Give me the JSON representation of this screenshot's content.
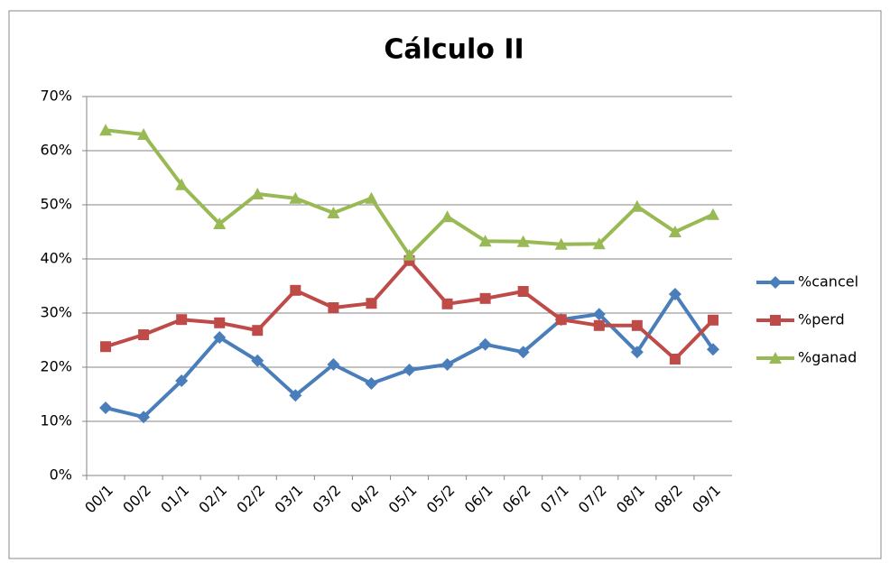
{
  "chart_data": {
    "type": "line",
    "title": "Cálculo II",
    "categories": [
      "00/1",
      "00/2",
      "01/1",
      "02/1",
      "02/2",
      "03/1",
      "03/2",
      "04/2",
      "05/1",
      "05/2",
      "06/1",
      "06/2",
      "07/1",
      "07/2",
      "08/1",
      "08/2",
      "09/1"
    ],
    "series": [
      {
        "name": "%cancel",
        "color": "#4a7ebb",
        "marker": "diamond",
        "values": [
          12.5,
          10.8,
          17.5,
          25.5,
          21.2,
          14.8,
          20.5,
          17,
          19.5,
          20.5,
          24.2,
          22.8,
          28.8,
          29.8,
          22.8,
          33.5,
          23.3
        ]
      },
      {
        "name": "%perd",
        "color": "#be4b48",
        "marker": "square",
        "values": [
          23.8,
          26,
          28.8,
          28.2,
          26.8,
          34.2,
          31,
          31.8,
          39.7,
          31.7,
          32.7,
          34,
          28.8,
          27.7,
          27.7,
          21.5,
          28.7
        ]
      },
      {
        "name": "%ganad",
        "color": "#98b954",
        "marker": "triangle",
        "values": [
          63.8,
          63,
          53.7,
          46.5,
          52,
          51.2,
          48.5,
          51.2,
          40.7,
          47.8,
          43.3,
          43.2,
          42.7,
          42.8,
          49.7,
          45,
          48.2
        ]
      }
    ],
    "ylim": [
      0,
      70
    ],
    "yticks": [
      {
        "value": 0,
        "label": "0%"
      },
      {
        "value": 10,
        "label": "10%"
      },
      {
        "value": 20,
        "label": "20%"
      },
      {
        "value": 30,
        "label": "30%"
      },
      {
        "value": 40,
        "label": "40%"
      },
      {
        "value": 50,
        "label": "50%"
      },
      {
        "value": 60,
        "label": "60%"
      },
      {
        "value": 70,
        "label": "70%"
      }
    ],
    "grid": true,
    "legend": "right"
  }
}
